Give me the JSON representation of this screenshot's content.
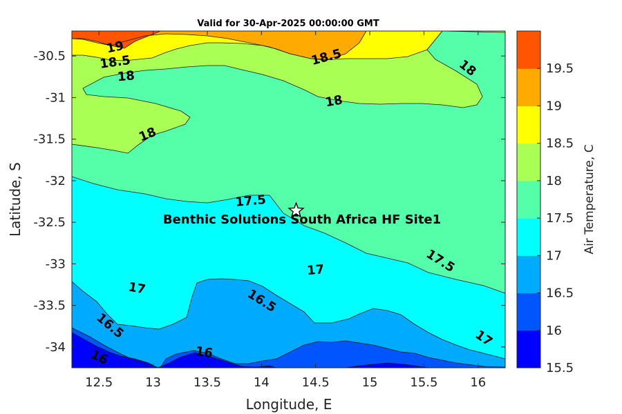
{
  "chart_data": {
    "type": "contour",
    "title": "Valid for 30-Apr-2025 00:00:00 GMT",
    "xlabel": "Longitude, E",
    "ylabel": "Latitude, S",
    "xlim": [
      12.25,
      16.25
    ],
    "ylim": [
      -34.25,
      -30.2
    ],
    "xticks": [
      12.5,
      13,
      13.5,
      14,
      14.5,
      15,
      15.5,
      16
    ],
    "xtick_labels": [
      "12.5",
      "13",
      "13.5",
      "14",
      "14.5",
      "15",
      "15.5",
      "16"
    ],
    "yticks": [
      -30.5,
      -31,
      -31.5,
      -32,
      -32.5,
      -33,
      -33.5,
      -34
    ],
    "ytick_labels": [
      "-30.5",
      "-31",
      "-31.5",
      "-32",
      "-32.5",
      "-33",
      "-33.5",
      "-34"
    ],
    "levels": [
      15.5,
      16,
      16.5,
      17,
      17.5,
      18,
      18.5,
      19,
      19.5
    ],
    "level_colors": [
      "#0000ff",
      "#0055ff",
      "#00aaff",
      "#00ffff",
      "#55ffaa",
      "#aaff55",
      "#ffff00",
      "#ffaa00",
      "#ff5500"
    ],
    "colorbar": {
      "label": "Air Temperature, C",
      "tick_labels": [
        "15.5",
        "16",
        "16.5",
        "17",
        "17.5",
        "18",
        "18.5",
        "19",
        "19.5"
      ]
    },
    "contour_labels": [
      {
        "text": "19",
        "lon": 12.65,
        "lat": -30.4,
        "angle": -12
      },
      {
        "text": "18.5",
        "lon": 12.65,
        "lat": -30.58,
        "angle": -8
      },
      {
        "text": "18",
        "lon": 12.75,
        "lat": -30.75,
        "angle": -5
      },
      {
        "text": "18.5",
        "lon": 14.6,
        "lat": -30.52,
        "angle": -15
      },
      {
        "text": "18",
        "lon": 15.9,
        "lat": -30.65,
        "angle": 38
      },
      {
        "text": "18",
        "lon": 14.67,
        "lat": -31.05,
        "angle": -10
      },
      {
        "text": "18",
        "lon": 12.95,
        "lat": -31.45,
        "angle": -22
      },
      {
        "text": "17.5",
        "lon": 13.9,
        "lat": -32.25,
        "angle": -5
      },
      {
        "text": "17.5",
        "lon": 15.65,
        "lat": -32.97,
        "angle": 32
      },
      {
        "text": "17",
        "lon": 12.85,
        "lat": -33.3,
        "angle": 10
      },
      {
        "text": "17",
        "lon": 14.5,
        "lat": -33.08,
        "angle": -5
      },
      {
        "text": "16.5",
        "lon": 14.0,
        "lat": -33.45,
        "angle": 32
      },
      {
        "text": "16.5",
        "lon": 12.6,
        "lat": -33.75,
        "angle": 40
      },
      {
        "text": "16",
        "lon": 12.5,
        "lat": -34.13,
        "angle": 25
      },
      {
        "text": "16",
        "lon": 13.47,
        "lat": -34.07,
        "angle": 8
      },
      {
        "text": "17",
        "lon": 16.05,
        "lat": -33.9,
        "angle": 35
      }
    ],
    "site": {
      "name": "Benthic Solutions South Africa HF Site1",
      "lon": 14.32,
      "lat": -32.36
    }
  }
}
